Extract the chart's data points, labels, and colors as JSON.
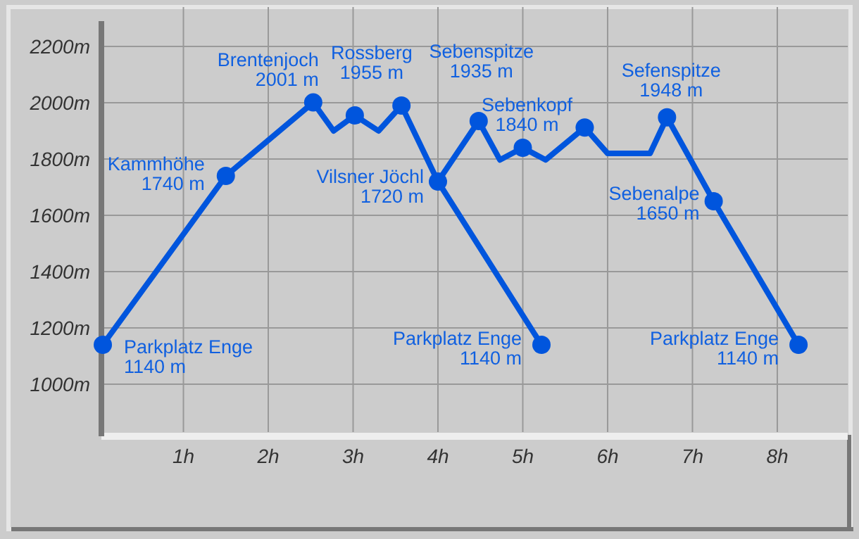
{
  "chart_data": {
    "type": "line",
    "xlim": [
      0,
      8.83
    ],
    "ylim": [
      830,
      2340
    ],
    "xticks": [
      {
        "value": 1,
        "label": "1h"
      },
      {
        "value": 2,
        "label": "2h"
      },
      {
        "value": 3,
        "label": "3h"
      },
      {
        "value": 4,
        "label": "4h"
      },
      {
        "value": 5,
        "label": "5h"
      },
      {
        "value": 6,
        "label": "6h"
      },
      {
        "value": 7,
        "label": "7h"
      },
      {
        "value": 8,
        "label": "8h"
      }
    ],
    "yticks": [
      {
        "value": 1000,
        "label": "1000m"
      },
      {
        "value": 1200,
        "label": "1200m"
      },
      {
        "value": 1400,
        "label": "1400m"
      },
      {
        "value": 1600,
        "label": "1600m"
      },
      {
        "value": 1800,
        "label": "1800m"
      },
      {
        "value": 2000,
        "label": "2000m"
      },
      {
        "value": 2200,
        "label": "2200m"
      }
    ],
    "grid": true,
    "marker": "none",
    "line_style": "solid",
    "series": [
      {
        "color": "#0055dd",
        "x": [
          0.05,
          1.5,
          2.53,
          2.77,
          3.02,
          3.3,
          3.57,
          4.0,
          5.22
        ],
        "values": [
          1140,
          1740,
          2001,
          1900,
          1955,
          1900,
          1990,
          1720,
          1140
        ]
      },
      {
        "color": "#0055dd",
        "x": [
          4.0,
          4.48,
          4.73,
          5.0,
          5.27,
          5.73,
          6.0,
          6.5,
          6.7,
          7.25,
          8.25
        ],
        "values": [
          1720,
          1935,
          1797,
          1840,
          1797,
          1912,
          1820,
          1820,
          1948,
          1650,
          1140
        ]
      },
      {
        "type": "scatter",
        "marker": "circle",
        "color": "#0055dd",
        "x": [
          0.05,
          1.5,
          2.53,
          3.02,
          3.57,
          4.0,
          5.22,
          4.48,
          5.0,
          5.73,
          6.7,
          7.25,
          8.25
        ],
        "values": [
          1140,
          1740,
          2001,
          1955,
          1990,
          1720,
          1140,
          1935,
          1840,
          1912,
          1948,
          1650,
          1140
        ]
      }
    ],
    "annotations": [
      {
        "text": "Parkplatz Enge\n1140 m",
        "x": 0.05,
        "y": 1140
      },
      {
        "text": "Kammhöhe\n1740 m",
        "x": 1.5,
        "y": 1740
      },
      {
        "text": "Brentenjoch\n2001 m",
        "x": 2.53,
        "y": 2001
      },
      {
        "text": "Rossberg\n1955 m",
        "x": 3.02,
        "y": 1955
      },
      {
        "text": "Vilsner Jöchl\n1720 m",
        "x": 4.0,
        "y": 1720
      },
      {
        "text": "Parkplatz Enge\n1140 m",
        "x": 5.22,
        "y": 1140
      },
      {
        "text": "Sebenspitze\n1935 m",
        "x": 4.48,
        "y": 1935
      },
      {
        "text": "Sebenkopf\n1840 m",
        "x": 5.0,
        "y": 1840
      },
      {
        "text": "Sefenspitze\n1948 m",
        "x": 6.7,
        "y": 1948
      },
      {
        "text": "Sebenalpe\n1650 m",
        "x": 7.25,
        "y": 1650
      },
      {
        "text": "Parkplatz Enge\n1140 m",
        "x": 8.25,
        "y": 1140
      }
    ]
  }
}
